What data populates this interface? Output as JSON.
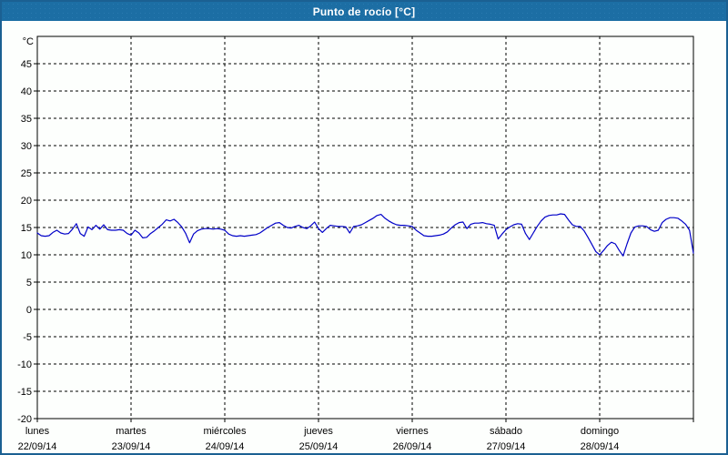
{
  "window": {
    "title": "Punto de rocío [°C]"
  },
  "colors": {
    "titlebar_bg": "#1c6ea4",
    "titlebar_text": "#ffffff",
    "frame_border": "#1b6092",
    "plot_bg": "#fdfffd",
    "plot_border": "#000000",
    "grid": "#000000",
    "tick_label": "#000000",
    "line": "#0000c8"
  },
  "chart_data": {
    "type": "line",
    "title": "Punto de rocío [°C]",
    "ylabel": "°C",
    "xlabel": "",
    "ylim": [
      -20,
      50
    ],
    "ytick_step": 5,
    "ytick_labels": [
      "45",
      "40",
      "35",
      "30",
      "25",
      "20",
      "15",
      "10",
      "5",
      "0",
      "-5",
      "-10",
      "-15",
      "-20"
    ],
    "grid": true,
    "legend_position": "none",
    "x_days": [
      {
        "name": "lunes",
        "date": "22/09/14"
      },
      {
        "name": "martes",
        "date": "23/09/14"
      },
      {
        "name": "miércoles",
        "date": "24/09/14"
      },
      {
        "name": "jueves",
        "date": "25/09/14"
      },
      {
        "name": "viernes",
        "date": "26/09/14"
      },
      {
        "name": "sábado",
        "date": "27/09/14"
      },
      {
        "name": "domingo",
        "date": "28/09/14"
      }
    ],
    "series": [
      {
        "name": "Punto de rocío",
        "unit": "°C",
        "sampling": "hourly",
        "values": [
          14.0,
          13.5,
          13.4,
          13.5,
          14.1,
          14.5,
          14.0,
          13.8,
          13.9,
          14.7,
          15.7,
          13.9,
          13.4,
          15.1,
          14.6,
          15.4,
          14.7,
          15.5,
          14.6,
          14.5,
          14.5,
          14.6,
          14.5,
          13.9,
          13.6,
          14.5,
          14.0,
          13.1,
          13.2,
          13.9,
          14.4,
          15.0,
          15.6,
          16.4,
          16.2,
          16.5,
          15.9,
          15.1,
          13.9,
          12.2,
          13.8,
          14.4,
          14.7,
          14.8,
          14.8,
          14.7,
          14.8,
          14.7,
          14.5,
          13.8,
          13.5,
          13.4,
          13.5,
          13.4,
          13.5,
          13.6,
          13.7,
          14.0,
          14.5,
          15.0,
          15.4,
          15.8,
          15.9,
          15.4,
          15.0,
          14.9,
          15.2,
          15.4,
          15.0,
          14.8,
          15.3,
          16.0,
          14.8,
          14.1,
          14.8,
          15.4,
          15.3,
          15.2,
          15.2,
          15.1,
          14.0,
          15.2,
          15.3,
          15.5,
          15.9,
          16.3,
          16.7,
          17.2,
          17.4,
          16.7,
          16.2,
          15.8,
          15.5,
          15.4,
          15.4,
          15.3,
          15.2,
          14.5,
          14.0,
          13.5,
          13.4,
          13.4,
          13.5,
          13.6,
          13.8,
          14.2,
          14.9,
          15.5,
          15.9,
          16.0,
          14.8,
          15.6,
          15.8,
          15.8,
          15.9,
          15.7,
          15.6,
          15.4,
          12.9,
          13.8,
          14.6,
          15.1,
          15.5,
          15.7,
          15.6,
          13.9,
          12.8,
          14.0,
          15.2,
          16.2,
          16.9,
          17.2,
          17.3,
          17.3,
          17.5,
          17.4,
          16.4,
          15.5,
          15.2,
          15.2,
          14.4,
          13.2,
          11.9,
          10.6,
          10.0,
          10.8,
          11.7,
          12.3,
          12.0,
          10.8,
          9.8,
          12.0,
          14.0,
          15.1,
          15.3,
          15.3,
          15.2,
          14.6,
          14.3,
          14.5,
          15.9,
          16.5,
          16.8,
          16.8,
          16.7,
          16.2,
          15.6,
          14.5,
          10.3
        ]
      }
    ]
  }
}
